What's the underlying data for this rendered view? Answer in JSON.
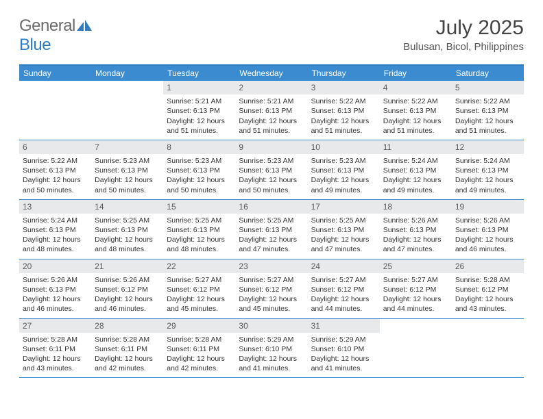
{
  "logo": {
    "text_general": "General",
    "text_blue": "Blue"
  },
  "header": {
    "month_title": "July 2025",
    "location": "Bulusan, Bicol, Philippines"
  },
  "colors": {
    "header_bar": "#3b8bd1",
    "top_rule": "#2f7dc0",
    "daynum_bg": "#e7e9eb",
    "text_gray": "#555555",
    "logo_gray": "#6b6b6b",
    "logo_blue": "#2f7dc0"
  },
  "weekdays": [
    "Sunday",
    "Monday",
    "Tuesday",
    "Wednesday",
    "Thursday",
    "Friday",
    "Saturday"
  ],
  "calendar": {
    "start_weekday_index": 2,
    "days": [
      {
        "n": 1,
        "sunrise": "5:21 AM",
        "sunset": "6:13 PM",
        "daylight": "12 hours and 51 minutes."
      },
      {
        "n": 2,
        "sunrise": "5:21 AM",
        "sunset": "6:13 PM",
        "daylight": "12 hours and 51 minutes."
      },
      {
        "n": 3,
        "sunrise": "5:22 AM",
        "sunset": "6:13 PM",
        "daylight": "12 hours and 51 minutes."
      },
      {
        "n": 4,
        "sunrise": "5:22 AM",
        "sunset": "6:13 PM",
        "daylight": "12 hours and 51 minutes."
      },
      {
        "n": 5,
        "sunrise": "5:22 AM",
        "sunset": "6:13 PM",
        "daylight": "12 hours and 51 minutes."
      },
      {
        "n": 6,
        "sunrise": "5:22 AM",
        "sunset": "6:13 PM",
        "daylight": "12 hours and 50 minutes."
      },
      {
        "n": 7,
        "sunrise": "5:23 AM",
        "sunset": "6:13 PM",
        "daylight": "12 hours and 50 minutes."
      },
      {
        "n": 8,
        "sunrise": "5:23 AM",
        "sunset": "6:13 PM",
        "daylight": "12 hours and 50 minutes."
      },
      {
        "n": 9,
        "sunrise": "5:23 AM",
        "sunset": "6:13 PM",
        "daylight": "12 hours and 50 minutes."
      },
      {
        "n": 10,
        "sunrise": "5:23 AM",
        "sunset": "6:13 PM",
        "daylight": "12 hours and 49 minutes."
      },
      {
        "n": 11,
        "sunrise": "5:24 AM",
        "sunset": "6:13 PM",
        "daylight": "12 hours and 49 minutes."
      },
      {
        "n": 12,
        "sunrise": "5:24 AM",
        "sunset": "6:13 PM",
        "daylight": "12 hours and 49 minutes."
      },
      {
        "n": 13,
        "sunrise": "5:24 AM",
        "sunset": "6:13 PM",
        "daylight": "12 hours and 48 minutes."
      },
      {
        "n": 14,
        "sunrise": "5:25 AM",
        "sunset": "6:13 PM",
        "daylight": "12 hours and 48 minutes."
      },
      {
        "n": 15,
        "sunrise": "5:25 AM",
        "sunset": "6:13 PM",
        "daylight": "12 hours and 48 minutes."
      },
      {
        "n": 16,
        "sunrise": "5:25 AM",
        "sunset": "6:13 PM",
        "daylight": "12 hours and 47 minutes."
      },
      {
        "n": 17,
        "sunrise": "5:25 AM",
        "sunset": "6:13 PM",
        "daylight": "12 hours and 47 minutes."
      },
      {
        "n": 18,
        "sunrise": "5:26 AM",
        "sunset": "6:13 PM",
        "daylight": "12 hours and 47 minutes."
      },
      {
        "n": 19,
        "sunrise": "5:26 AM",
        "sunset": "6:13 PM",
        "daylight": "12 hours and 46 minutes."
      },
      {
        "n": 20,
        "sunrise": "5:26 AM",
        "sunset": "6:13 PM",
        "daylight": "12 hours and 46 minutes."
      },
      {
        "n": 21,
        "sunrise": "5:26 AM",
        "sunset": "6:12 PM",
        "daylight": "12 hours and 46 minutes."
      },
      {
        "n": 22,
        "sunrise": "5:27 AM",
        "sunset": "6:12 PM",
        "daylight": "12 hours and 45 minutes."
      },
      {
        "n": 23,
        "sunrise": "5:27 AM",
        "sunset": "6:12 PM",
        "daylight": "12 hours and 45 minutes."
      },
      {
        "n": 24,
        "sunrise": "5:27 AM",
        "sunset": "6:12 PM",
        "daylight": "12 hours and 44 minutes."
      },
      {
        "n": 25,
        "sunrise": "5:27 AM",
        "sunset": "6:12 PM",
        "daylight": "12 hours and 44 minutes."
      },
      {
        "n": 26,
        "sunrise": "5:28 AM",
        "sunset": "6:12 PM",
        "daylight": "12 hours and 43 minutes."
      },
      {
        "n": 27,
        "sunrise": "5:28 AM",
        "sunset": "6:11 PM",
        "daylight": "12 hours and 43 minutes."
      },
      {
        "n": 28,
        "sunrise": "5:28 AM",
        "sunset": "6:11 PM",
        "daylight": "12 hours and 42 minutes."
      },
      {
        "n": 29,
        "sunrise": "5:28 AM",
        "sunset": "6:11 PM",
        "daylight": "12 hours and 42 minutes."
      },
      {
        "n": 30,
        "sunrise": "5:29 AM",
        "sunset": "6:10 PM",
        "daylight": "12 hours and 41 minutes."
      },
      {
        "n": 31,
        "sunrise": "5:29 AM",
        "sunset": "6:10 PM",
        "daylight": "12 hours and 41 minutes."
      }
    ]
  },
  "labels": {
    "sunrise_prefix": "Sunrise: ",
    "sunset_prefix": "Sunset: ",
    "daylight_prefix": "Daylight: "
  }
}
